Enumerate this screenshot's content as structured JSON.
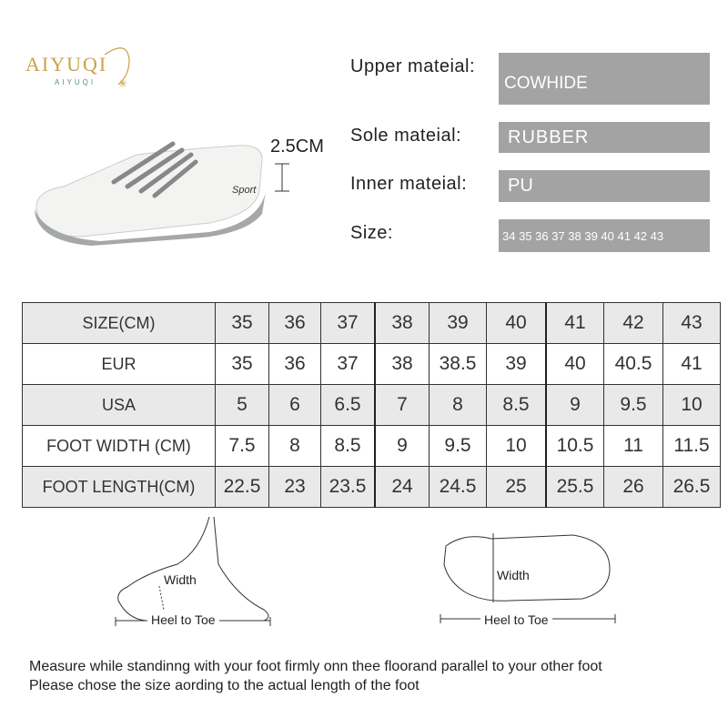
{
  "brand": {
    "logo": "AIYUQI",
    "logo_sub": "AIYUQI",
    "accent": "#c9a24a"
  },
  "product": {
    "heel_height": "2.5CM",
    "sole_text": "Sport"
  },
  "specs": [
    {
      "label": "Upper mateial:",
      "value": "COWHIDE"
    },
    {
      "label": "Sole mateial:",
      "value": "RUBBER"
    },
    {
      "label": "Inner mateial:",
      "value": "PU"
    },
    {
      "label": "Size:",
      "value": "34 35 36 37 38 39 40 41 42 43"
    }
  ],
  "size_table": {
    "rows": [
      {
        "header": "SIZE(CM)",
        "values": [
          "35",
          "36",
          "37",
          "38",
          "39",
          "40",
          "41",
          "42",
          "43"
        ]
      },
      {
        "header": "EUR",
        "values": [
          "35",
          "36",
          "37",
          "38",
          "38.5",
          "39",
          "40",
          "40.5",
          "41"
        ]
      },
      {
        "header": "USA",
        "values": [
          "5",
          "6",
          "6.5",
          "7",
          "8",
          "8.5",
          "9",
          "9.5",
          "10"
        ]
      },
      {
        "header": "FOOT WIDTH (CM)",
        "values": [
          "7.5",
          "8",
          "8.5",
          "9",
          "9.5",
          "10",
          "10.5",
          "11",
          "11.5"
        ]
      },
      {
        "header": "FOOT LENGTH(CM)",
        "values": [
          "22.5",
          "23",
          "23.5",
          "24",
          "24.5",
          "25",
          "25.5",
          "26",
          "26.5"
        ]
      }
    ]
  },
  "diagrams": {
    "side_width": "Width",
    "side_length": "Heel to Toe",
    "top_width": "Width",
    "top_length": "Heel to Toe"
  },
  "notes": [
    "Measure while standinng with your foot firmly onn thee floorand parallel to your other foot",
    "Please chose the size aording to the actual length of the foot"
  ]
}
